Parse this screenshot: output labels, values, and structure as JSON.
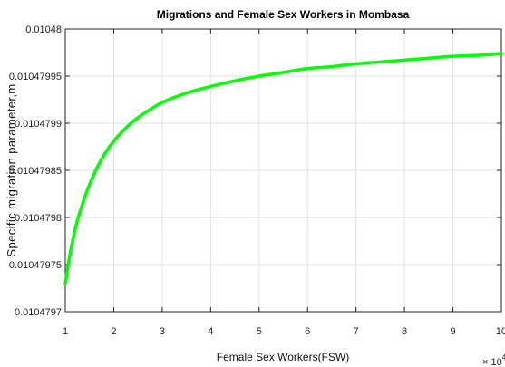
{
  "chart_data": {
    "type": "line",
    "title": "Migrations and Female Sex Workers in Mombasa",
    "xlabel": "Female Sex Workers(FSW)",
    "ylabel": "Specific migration parameter,m",
    "x_multiplier_base": "× 10",
    "x_multiplier_exp": "4",
    "xlim": [
      1,
      10
    ],
    "ylim": [
      0.0104797,
      0.01048
    ],
    "x_ticks": [
      1,
      2,
      3,
      4,
      5,
      6,
      7,
      8,
      9,
      10
    ],
    "x_tick_labels": [
      "1",
      "2",
      "3",
      "4",
      "5",
      "6",
      "7",
      "8",
      "9",
      "10"
    ],
    "y_ticks": [
      0.0104797,
      0.01047975,
      0.0104798,
      0.01047985,
      0.0104799,
      0.01047995,
      0.01048
    ],
    "y_tick_labels": [
      "0.0104797",
      "0.01047975",
      "0.0104798",
      "0.01047985",
      "0.0104799",
      "0.01047995",
      "0.01048"
    ],
    "grid": true,
    "line_color": "#00ff00",
    "series": [
      {
        "x": [
          1.0,
          1.1,
          1.25,
          1.5,
          1.75,
          2.0,
          2.25,
          2.5,
          3.0,
          3.5,
          4.0,
          4.5,
          5.0,
          5.5,
          6.0,
          6.5,
          7.0,
          7.5,
          8.0,
          8.5,
          9.0,
          9.5,
          10.0
        ],
        "y": [
          0.01047973,
          0.010479762,
          0.010479797,
          0.010479835,
          0.010479862,
          0.010479881,
          0.010479895,
          0.010479906,
          0.010479922,
          0.010479932,
          0.010479939,
          0.010479945,
          0.01047995,
          0.010479954,
          0.010479958,
          0.01047996,
          0.010479963,
          0.010479965,
          0.010479967,
          0.010479969,
          0.010479971,
          0.010479972,
          0.010479974
        ]
      }
    ]
  }
}
